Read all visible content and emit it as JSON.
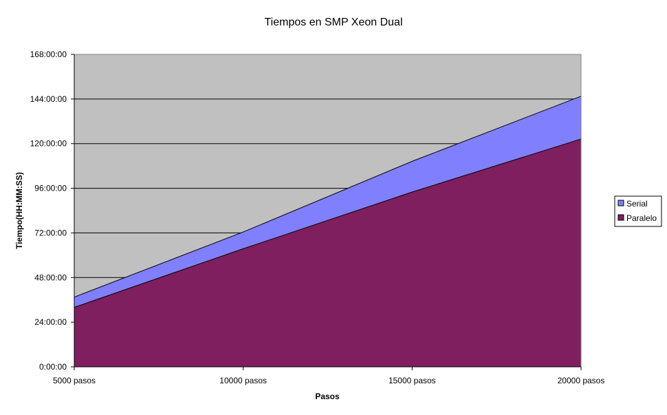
{
  "chart_data": {
    "type": "area",
    "stacked": false,
    "title": "Tiempos en SMP Xeon Dual",
    "xlabel": "Pasos",
    "ylabel": "Tiempo(HH:MM:SS)",
    "categories": [
      "5000 pasos",
      "10000 pasos",
      "15000 pasos",
      "20000 pasos"
    ],
    "y_unit": "hours",
    "ylim": [
      0,
      168
    ],
    "y_ticks": [
      0,
      24,
      48,
      72,
      96,
      120,
      144,
      168
    ],
    "y_tick_labels": [
      "0:00:00",
      "24:00:00",
      "48:00:00",
      "72:00:00",
      "96:00:00",
      "120:00:00",
      "144:00:00",
      "168:00:00"
    ],
    "series": [
      {
        "name": "Serial",
        "values": [
          37.5,
          72.5,
          110.5,
          145.5
        ],
        "color": "#8080ff"
      },
      {
        "name": "Paralelo",
        "values": [
          32,
          63.5,
          94,
          122.5
        ],
        "color": "#7f1f5f"
      }
    ],
    "plot_background": "#c0c0c0",
    "grid": true,
    "grid_color": "#000000",
    "legend_position": "right"
  }
}
